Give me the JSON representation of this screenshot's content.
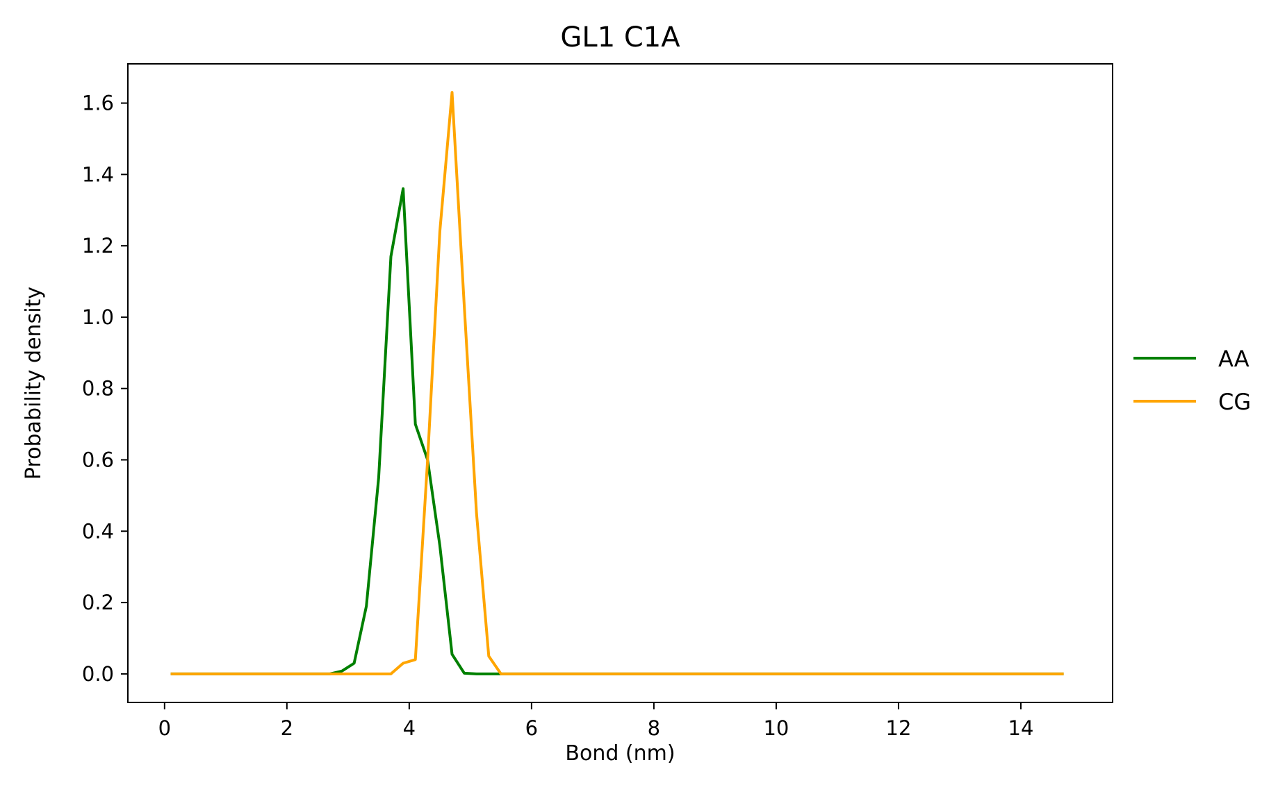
{
  "chart_data": {
    "type": "line",
    "title": "GL1 C1A",
    "xlabel": "Bond (nm)",
    "ylabel": "Probability density",
    "xlim": [
      -0.6,
      15.5
    ],
    "ylim": [
      -0.08,
      1.71
    ],
    "xticks": [
      0,
      2,
      4,
      6,
      8,
      10,
      12,
      14
    ],
    "xtick_labels": [
      "0",
      "2",
      "4",
      "6",
      "8",
      "10",
      "12",
      "14"
    ],
    "yticks": [
      0.0,
      0.2,
      0.4,
      0.6,
      0.8,
      1.0,
      1.2,
      1.4,
      1.6
    ],
    "ytick_labels": [
      "0.0",
      "0.2",
      "0.4",
      "0.6",
      "0.8",
      "1.0",
      "1.2",
      "1.4",
      "1.6"
    ],
    "grid": false,
    "legend_position": "center-right-outside",
    "series": [
      {
        "name": "AA",
        "color": "#008000",
        "x": [
          0.1,
          0.3,
          0.5,
          0.7,
          0.9,
          1.1,
          1.3,
          1.5,
          1.7,
          1.9,
          2.1,
          2.3,
          2.5,
          2.7,
          2.9,
          3.1,
          3.3,
          3.5,
          3.7,
          3.9,
          4.1,
          4.3,
          4.5,
          4.7,
          4.9,
          5.1,
          5.3,
          5.5,
          5.7,
          5.9,
          6.1,
          6.3,
          6.5,
          6.7,
          6.9,
          7.1,
          7.3,
          7.5,
          7.7,
          7.9,
          8.1,
          8.3,
          8.5,
          8.7,
          8.9,
          9.1,
          9.3,
          9.5,
          9.7,
          9.9,
          10.1,
          10.3,
          10.5,
          10.7,
          10.9,
          11.1,
          11.3,
          11.5,
          11.7,
          11.9,
          12.1,
          12.3,
          12.5,
          12.7,
          12.9,
          13.1,
          13.3,
          13.5,
          13.7,
          13.9,
          14.1,
          14.3,
          14.5,
          14.7
        ],
        "y": [
          0,
          0,
          0,
          0,
          0,
          0,
          0,
          0,
          0,
          0,
          0,
          0,
          0,
          0,
          0.008,
          0.03,
          0.19,
          0.55,
          1.17,
          1.36,
          0.7,
          0.6,
          0.36,
          0.055,
          0.002,
          0,
          0,
          0,
          0,
          0,
          0,
          0,
          0,
          0,
          0,
          0,
          0,
          0,
          0,
          0,
          0,
          0,
          0,
          0,
          0,
          0,
          0,
          0,
          0,
          0,
          0,
          0,
          0,
          0,
          0,
          0,
          0,
          0,
          0,
          0,
          0,
          0,
          0,
          0,
          0,
          0,
          0,
          0,
          0,
          0,
          0,
          0,
          0,
          0
        ]
      },
      {
        "name": "CG",
        "color": "#ffa500",
        "x": [
          0.1,
          0.3,
          0.5,
          0.7,
          0.9,
          1.1,
          1.3,
          1.5,
          1.7,
          1.9,
          2.1,
          2.3,
          2.5,
          2.7,
          2.9,
          3.1,
          3.3,
          3.5,
          3.7,
          3.9,
          4.1,
          4.3,
          4.5,
          4.7,
          4.9,
          5.1,
          5.3,
          5.5,
          5.7,
          5.9,
          6.1,
          6.3,
          6.5,
          6.7,
          6.9,
          7.1,
          7.3,
          7.5,
          7.7,
          7.9,
          8.1,
          8.3,
          8.5,
          8.7,
          8.9,
          9.1,
          9.3,
          9.5,
          9.7,
          9.9,
          10.1,
          10.3,
          10.5,
          10.7,
          10.9,
          11.1,
          11.3,
          11.5,
          11.7,
          11.9,
          12.1,
          12.3,
          12.5,
          12.7,
          12.9,
          13.1,
          13.3,
          13.5,
          13.7,
          13.9,
          14.1,
          14.3,
          14.5,
          14.7
        ],
        "y": [
          0,
          0,
          0,
          0,
          0,
          0,
          0,
          0,
          0,
          0,
          0,
          0,
          0,
          0,
          0,
          0,
          0,
          0,
          0,
          0.03,
          0.04,
          0.6,
          1.24,
          1.63,
          1.03,
          0.45,
          0.05,
          0,
          0,
          0,
          0,
          0,
          0,
          0,
          0,
          0,
          0,
          0,
          0,
          0,
          0,
          0,
          0,
          0,
          0,
          0,
          0,
          0,
          0,
          0,
          0,
          0,
          0,
          0,
          0,
          0,
          0,
          0,
          0,
          0,
          0,
          0,
          0,
          0,
          0,
          0,
          0,
          0,
          0,
          0,
          0,
          0,
          0,
          0
        ]
      }
    ]
  }
}
